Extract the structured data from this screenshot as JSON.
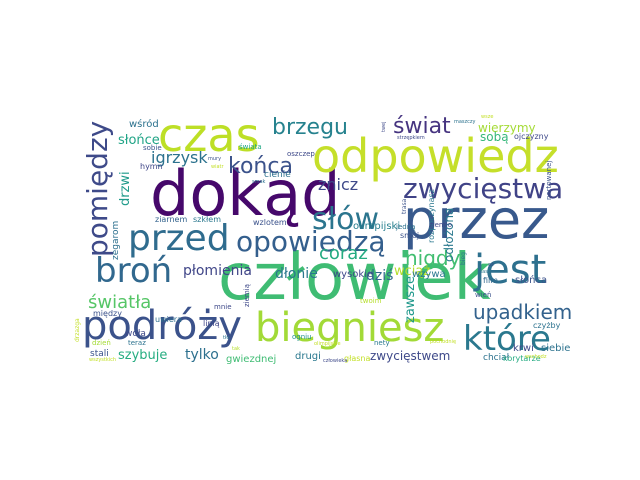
{
  "words": [
    {
      "id": "w_czlowiek",
      "text": "człowiek",
      "color": "#3fbc73"
    },
    {
      "id": "w_dokad",
      "text": "dokąd",
      "color": "#46086b"
    },
    {
      "id": "w_przez",
      "text": "przez",
      "color": "#38598c"
    },
    {
      "id": "w_odpowiedz",
      "text": "odpowiedz",
      "color": "#c5df2a"
    },
    {
      "id": "w_czas",
      "text": "czas",
      "color": "#bddf26"
    },
    {
      "id": "w_biegniesz",
      "text": "biegniesz",
      "color": "#a2da37"
    },
    {
      "id": "w_podrozy",
      "text": "podróży",
      "color": "#3b528b"
    },
    {
      "id": "w_jest",
      "text": "jest",
      "color": "#2d708e"
    },
    {
      "id": "w_przed",
      "text": "przed",
      "color": "#2f6c8e"
    },
    {
      "id": "w_opowiedza",
      "text": "opowiedzą",
      "color": "#345f8d"
    },
    {
      "id": "w_bron",
      "text": "broń",
      "color": "#31688e"
    },
    {
      "id": "w_slow",
      "text": "słów",
      "color": "#2b758e"
    },
    {
      "id": "w_zwyciestwa",
      "text": "zwycięstwa",
      "color": "#404387"
    },
    {
      "id": "w_ktore",
      "text": "które",
      "color": "#2a788e"
    },
    {
      "id": "w_pomiedzy",
      "text": "pomiędzy",
      "color": "#3e4a89"
    },
    {
      "id": "w_brzegu",
      "text": "brzegu",
      "color": "#26828e"
    },
    {
      "id": "w_swiat",
      "text": "świat",
      "color": "#463480"
    },
    {
      "id": "w_konca",
      "text": "końca",
      "color": "#3b528b"
    },
    {
      "id": "w_nigdy",
      "text": "nigdy",
      "color": "#42be71"
    },
    {
      "id": "w_upadkiem",
      "text": "upadkiem",
      "color": "#33628d"
    },
    {
      "id": "w_swiatla",
      "text": "światła",
      "color": "#56c667"
    },
    {
      "id": "w_coraz",
      "text": "coraz",
      "color": "#25ab82"
    },
    {
      "id": "w_igrzysk",
      "text": "igrzysk",
      "color": "#2c728e"
    },
    {
      "id": "w_znicz",
      "text": "znicz",
      "color": "#3e4989"
    },
    {
      "id": "w_plomienia",
      "text": "płomienia",
      "color": "#404688"
    },
    {
      "id": "w_dlonie",
      "text": "dłonie",
      "color": "#2a778e"
    },
    {
      "id": "w_slonce",
      "text": "słońce",
      "color": "#20a486"
    },
    {
      "id": "w_drzwi",
      "text": "drzwi",
      "color": "#1f9a8a"
    },
    {
      "id": "w_wierzymy",
      "text": "wierzymy",
      "color": "#a5db36"
    },
    {
      "id": "w_soba",
      "text": "sobą",
      "color": "#35b779"
    },
    {
      "id": "w_dzis",
      "text": "dziś",
      "color": "#31688e"
    },
    {
      "id": "w_wciaz",
      "text": "wciąż",
      "color": "#b5de2b"
    },
    {
      "id": "w_odlozona",
      "text": "odłożona",
      "color": "#2a788e"
    },
    {
      "id": "w_zawsze",
      "text": "zawsze",
      "color": "#1f988b"
    },
    {
      "id": "w_zwyciestwem",
      "text": "zwycięstwem",
      "color": "#3e4989"
    },
    {
      "id": "w_tylko",
      "text": "tylko",
      "color": "#2d708e"
    },
    {
      "id": "w_szybuje",
      "text": "szybuje",
      "color": "#26ad81"
    },
    {
      "id": "w_wsrod",
      "text": "wśród",
      "color": "#2c728e"
    },
    {
      "id": "w_olimpijski",
      "text": "olimpijski",
      "color": "#277f8e"
    },
    {
      "id": "w_wysokie",
      "text": "wysokie",
      "color": "#3e4989"
    },
    {
      "id": "w_wzywa",
      "text": "wzywa",
      "color": "#2a788e"
    },
    {
      "id": "w_krwi",
      "text": "krwi",
      "color": "#3e4a89"
    },
    {
      "id": "w_siebie",
      "text": "siebie",
      "color": "#2c728e"
    },
    {
      "id": "w_slonca",
      "text": "słońca",
      "color": "#3b528b"
    },
    {
      "id": "w_gwiezdnej",
      "text": "gwiezdnej",
      "color": "#3fbc73"
    },
    {
      "id": "w_drugi",
      "text": "drugi",
      "color": "#2a788e"
    },
    {
      "id": "w_glasna",
      "text": "głasna",
      "color": "#c2df23"
    },
    {
      "id": "w_chcial",
      "text": "chciał",
      "color": "#2c728e"
    },
    {
      "id": "w_stali",
      "text": "stali",
      "color": "#3b528b"
    },
    {
      "id": "w_hymn",
      "text": "hymn",
      "color": "#404688"
    },
    {
      "id": "w_cienie",
      "text": "cienie",
      "color": "#2c728e"
    },
    {
      "id": "w_ziarnem",
      "text": "ziarnem",
      "color": "#33638d"
    },
    {
      "id": "w_szklem",
      "text": "szkłem",
      "color": "#2a778e"
    },
    {
      "id": "w_wzlotem",
      "text": "wzlotem",
      "color": "#3b528b"
    },
    {
      "id": "w_zegarom",
      "text": "zegarom",
      "color": "#2d708e"
    },
    {
      "id": "w_uwiera",
      "text": "uwiera",
      "color": "#2e6e8e"
    },
    {
      "id": "w_wola",
      "text": "woła",
      "color": "#3e4989"
    },
    {
      "id": "w_linia",
      "text": "linią",
      "color": "#404688"
    },
    {
      "id": "w_ziemia",
      "text": "ziemią",
      "color": "#3e4989"
    },
    {
      "id": "w_ogniu",
      "text": "ogniu",
      "color": "#21918c"
    },
    {
      "id": "w_miedzy",
      "text": "między",
      "color": "#3b528b"
    },
    {
      "id": "w_teraz",
      "text": "teraz",
      "color": "#2c728e"
    },
    {
      "id": "w_film",
      "text": "film",
      "color": "#31688e"
    },
    {
      "id": "w_czyzby",
      "text": "czyżby",
      "color": "#2c728e"
    },
    {
      "id": "w_korytarze",
      "text": "korytarze",
      "color": "#25ab82"
    },
    {
      "id": "w_ojczyzny",
      "text": "ojczyzny",
      "color": "#3e4989"
    },
    {
      "id": "w_rozpoczynasz",
      "text": "rozpoczynasz",
      "color": "#2a778e"
    },
    {
      "id": "w_nartowanej",
      "text": "nartowanej",
      "color": "#3b528b"
    },
    {
      "id": "w_oszczep",
      "text": "oszczep",
      "color": "#3e4989"
    },
    {
      "id": "w_swiata",
      "text": "świata",
      "color": "#22a785"
    },
    {
      "id": "w_sobie",
      "text": "sobie",
      "color": "#3b528b"
    },
    {
      "id": "w_smoj",
      "text": "smój",
      "color": "#3b528b"
    },
    {
      "id": "w_jedna",
      "text": "jedną",
      "color": "#2c728e"
    },
    {
      "id": "w_ziemio",
      "text": "ziemio",
      "color": "#3e4989"
    },
    {
      "id": "w_twoim",
      "text": "twoim",
      "color": "#b5de2b"
    },
    {
      "id": "w_wien",
      "text": "wień",
      "color": "#3b528b"
    },
    {
      "id": "w_biegl",
      "text": "bieg",
      "color": "#2c728e"
    },
    {
      "id": "w_drzazga",
      "text": "drzazga",
      "color": "#c2df23"
    },
    {
      "id": "w_dzien",
      "text": "dzień",
      "color": "#a5db36"
    },
    {
      "id": "w_trasa",
      "text": "trasa",
      "color": "#3b528b"
    },
    {
      "id": "w_mnie",
      "text": "mnie",
      "color": "#3e4989"
    },
    {
      "id": "w_nety",
      "text": "nety",
      "color": "#2a788e"
    },
    {
      "id": "w_twej",
      "text": "twej",
      "color": "#3e4989"
    },
    {
      "id": "w_maszy",
      "text": "maszczy",
      "color": "#2c728e"
    },
    {
      "id": "w_wmury",
      "text": "mury",
      "color": "#3b528b"
    },
    {
      "id": "w_olimpias",
      "text": "olimpijskie",
      "color": "#c2df23"
    },
    {
      "id": "w_wschodz",
      "text": "wschodz",
      "color": "#c2df23"
    },
    {
      "id": "w_wspaz",
      "text": "wszystkich",
      "color": "#c2df23"
    },
    {
      "id": "w_sznurek",
      "text": "strzępkiem",
      "color": "#3e4989"
    },
    {
      "id": "w_cz2",
      "text": "człowieka",
      "color": "#3e4989"
    },
    {
      "id": "w_wsz",
      "text": "wsze",
      "color": "#c2df23"
    },
    {
      "id": "w_tak",
      "text": "tak",
      "color": "#b5de2b"
    },
    {
      "id": "w_tlo",
      "text": "tło",
      "color": "#2c728e"
    },
    {
      "id": "w_az",
      "text": "aż",
      "color": "#3b528b"
    },
    {
      "id": "w_nasz",
      "text": "nasz",
      "color": "#2a788e"
    },
    {
      "id": "w_pochodni",
      "text": "pochodnię",
      "color": "#c2df23"
    },
    {
      "id": "w_wiatr",
      "text": "wiatr",
      "color": "#c2df23"
    },
    {
      "id": "w_smak",
      "text": "smak",
      "color": "#2c728e"
    }
  ]
}
